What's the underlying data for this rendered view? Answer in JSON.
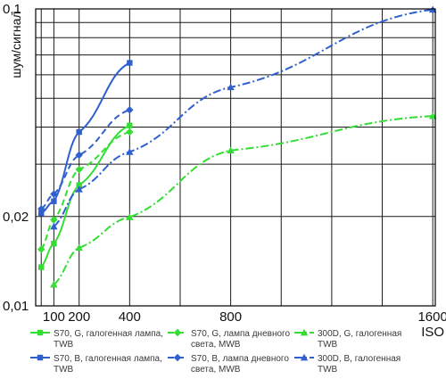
{
  "chart_data": {
    "type": "line",
    "xlabel": "ISO",
    "ylabel": "шум/сигнал",
    "x_ticks": [
      100,
      200,
      400,
      800,
      1600
    ],
    "x_tick_labels": [
      "100",
      "200",
      "400",
      "800",
      "1600"
    ],
    "y_scale": "log",
    "y_ticks": [
      0.01,
      0.02,
      0.1
    ],
    "y_tick_labels": [
      "0,01",
      "0,02",
      "0,1"
    ],
    "xlim": [
      28,
      1610
    ],
    "ylim": [
      0.01,
      0.1
    ],
    "grid": true,
    "legend_position": "bottom",
    "series": [
      {
        "name_lines": [
          "S70, G, галогенная лампа,",
          "TWB"
        ],
        "color": "#33dd33",
        "dash": "solid",
        "marker": "square",
        "x": [
          50,
          100,
          200,
          400
        ],
        "y": [
          0.0135,
          0.0162,
          0.0255,
          0.0405
        ]
      },
      {
        "name_lines": [
          "S70, G, лампа дневного",
          "света, MWB"
        ],
        "color": "#33dd33",
        "dash": "dash",
        "marker": "diamond",
        "x": [
          50,
          100,
          200,
          400
        ],
        "y": [
          0.0155,
          0.0195,
          0.0288,
          0.0385
        ]
      },
      {
        "name_lines": [
          "300D, G, галогенная",
          "TWB"
        ],
        "color": "#33dd33",
        "dash": "dashdot",
        "marker": "triangle",
        "x": [
          100,
          200,
          400,
          800,
          1600
        ],
        "y": [
          0.0118,
          0.0157,
          0.0199,
          0.0334,
          0.0436
        ]
      },
      {
        "name_lines": [
          "S70, B, галогенная лампа,",
          "TWB"
        ],
        "color": "#3060d0",
        "dash": "solid",
        "marker": "square",
        "x": [
          50,
          100,
          200,
          400
        ],
        "y": [
          0.0205,
          0.0225,
          0.0385,
          0.0658
        ]
      },
      {
        "name_lines": [
          "S70, B, лампа дневного",
          "света, MWB"
        ],
        "color": "#3060d0",
        "dash": "dash",
        "marker": "diamond",
        "x": [
          50,
          100,
          200,
          400
        ],
        "y": [
          0.0212,
          0.0238,
          0.0322,
          0.0457
        ]
      },
      {
        "name_lines": [
          "300D, B, галогенная",
          "TWB"
        ],
        "color": "#3060d0",
        "dash": "dashdot",
        "marker": "triangle",
        "x": [
          100,
          200,
          400,
          800,
          1600
        ],
        "y": [
          0.0185,
          0.0247,
          0.033,
          0.0545,
          0.0995
        ]
      }
    ]
  }
}
